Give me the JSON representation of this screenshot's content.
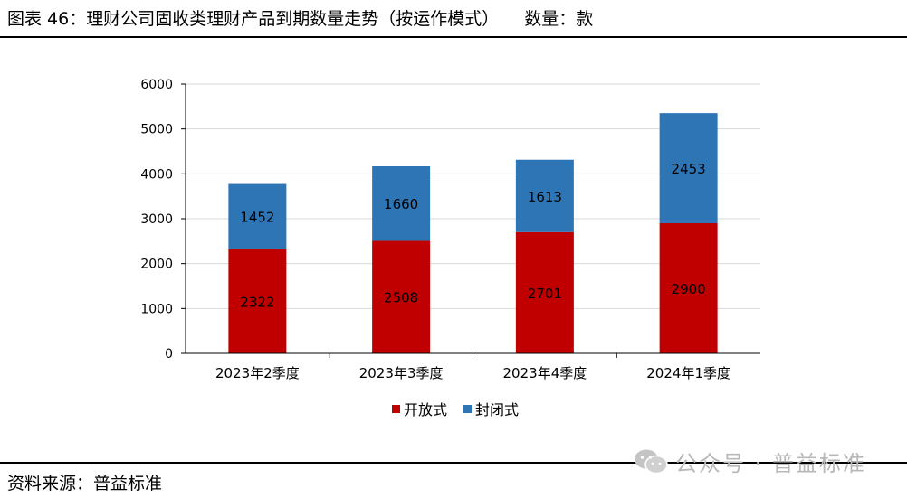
{
  "header": {
    "title": "图表 46：理财公司固收类理财产品到期数量走势（按运作模式）",
    "unit": "数量：款"
  },
  "footer": {
    "source": "资料来源：普益标准",
    "watermark": "公众号 · 普益标准"
  },
  "icons": {
    "watermark_icon": "wechat-icon"
  },
  "colors": {
    "open": "#C00000",
    "closed": "#2E75B6",
    "grid": "#D9D9D9",
    "axis": "#000000"
  },
  "chart_data": {
    "type": "bar",
    "stacked": true,
    "categories": [
      "2023年2季度",
      "2023年3季度",
      "2023年4季度",
      "2024年1季度"
    ],
    "series": [
      {
        "name": "开放式",
        "values": [
          2322,
          2508,
          2701,
          2900
        ]
      },
      {
        "name": "封闭式",
        "values": [
          1452,
          1660,
          1613,
          2453
        ]
      }
    ],
    "ylim": [
      0,
      6000
    ],
    "yticks": [
      "0",
      "1000",
      "2000",
      "3000",
      "4000",
      "5000",
      "6000"
    ],
    "grid": true,
    "legend": "bottom"
  }
}
